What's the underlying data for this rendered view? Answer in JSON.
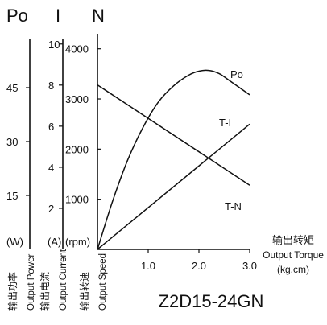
{
  "chart_data": {
    "type": "line",
    "model": "Z2D15-24GN",
    "axes": {
      "x": {
        "label_cn": "输出转矩",
        "label_en": "Output Torque",
        "unit": "(kg.cm)",
        "range": [
          0,
          3.0
        ],
        "ticks": [
          "1.0",
          "2.0",
          "3.0"
        ],
        "tick_values": [
          1.0,
          2.0,
          3.0
        ]
      },
      "power": {
        "header": "Po",
        "unit": "(W)",
        "label_cn": "输出功率",
        "label_en": "Output Power",
        "range": [
          0,
          60
        ],
        "ticks": [
          "15",
          "30",
          "45"
        ],
        "tick_values": [
          15,
          30,
          45
        ]
      },
      "current": {
        "header": "I",
        "unit": "(A)",
        "label_cn": "输出电流",
        "label_en": "Output Current",
        "range": [
          0,
          10.5
        ],
        "ticks": [
          "2",
          "4",
          "6",
          "8",
          "10"
        ],
        "tick_values": [
          2,
          4,
          6,
          8,
          10
        ]
      },
      "speed": {
        "header": "N",
        "unit": "(rpm)",
        "label_cn": "输出转速",
        "label_en": "Output Speed",
        "range": [
          0,
          4300
        ],
        "ticks": [
          "1000",
          "2000",
          "3000",
          "4000"
        ],
        "tick_values": [
          1000,
          2000,
          3000,
          4000
        ]
      }
    },
    "series": [
      {
        "name": "Po",
        "axis": "power",
        "x": [
          0,
          0.3,
          0.6,
          0.9,
          1.2,
          1.5,
          1.8,
          2.0,
          2.2,
          2.4,
          2.6,
          2.8,
          3.0
        ],
        "y": [
          0,
          13.5,
          25,
          34,
          41,
          45.5,
          48.5,
          49.6,
          49.8,
          48.9,
          47,
          45,
          43
        ]
      },
      {
        "name": "T-I",
        "axis": "current",
        "x": [
          0,
          3.0
        ],
        "y": [
          0,
          6.1
        ]
      },
      {
        "name": "T-N",
        "axis": "speed",
        "x": [
          0,
          3.0
        ],
        "y": [
          3280,
          1280
        ]
      }
    ]
  }
}
